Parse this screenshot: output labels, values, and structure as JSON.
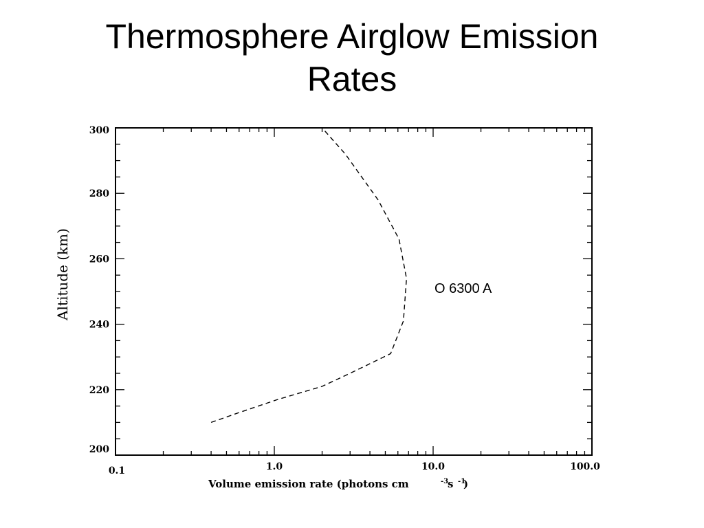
{
  "slide": {
    "title_line1": "Thermosphere Airglow Emission",
    "title_line2": "Rates"
  },
  "chart_data": {
    "type": "line",
    "x_scale": "log",
    "xlim": [
      0.1,
      100.0
    ],
    "ylim": [
      200,
      300
    ],
    "ylabel": "Altitude (km)",
    "xlabel_main": "Volume emission rate (photons cm",
    "xlabel_sup1": "-3",
    "xlabel_s": " s ",
    "xlabel_sup2": "-1",
    "xlabel_close": ")",
    "x_tick_labels": [
      {
        "value": 0.1,
        "label": "0.1"
      },
      {
        "value": 1.0,
        "label": "1.0"
      },
      {
        "value": 10.0,
        "label": "10.0"
      },
      {
        "value": 100.0,
        "label": "100.0"
      }
    ],
    "y_tick_labels": [
      {
        "value": 200,
        "label": "200"
      },
      {
        "value": 220,
        "label": "220"
      },
      {
        "value": 240,
        "label": "240"
      },
      {
        "value": 260,
        "label": "260"
      },
      {
        "value": 280,
        "label": "280"
      },
      {
        "value": 300,
        "label": "300"
      }
    ],
    "series": [
      {
        "name": "O 6300 A",
        "line_style": "dashed",
        "color": "#000000",
        "points": [
          {
            "x": 0.4,
            "y": 210
          },
          {
            "x": 0.6,
            "y": 213
          },
          {
            "x": 1.05,
            "y": 217
          },
          {
            "x": 2.0,
            "y": 221
          },
          {
            "x": 3.0,
            "y": 225
          },
          {
            "x": 5.4,
            "y": 231
          },
          {
            "x": 6.5,
            "y": 241
          },
          {
            "x": 6.8,
            "y": 254
          },
          {
            "x": 6.1,
            "y": 266
          },
          {
            "x": 4.5,
            "y": 278
          },
          {
            "x": 2.8,
            "y": 292
          },
          {
            "x": 2.0,
            "y": 300
          }
        ]
      }
    ],
    "annotations": [
      {
        "text": "O 6300 A",
        "x": 10.0,
        "y": 251
      }
    ],
    "grid": false,
    "legend": "none"
  }
}
